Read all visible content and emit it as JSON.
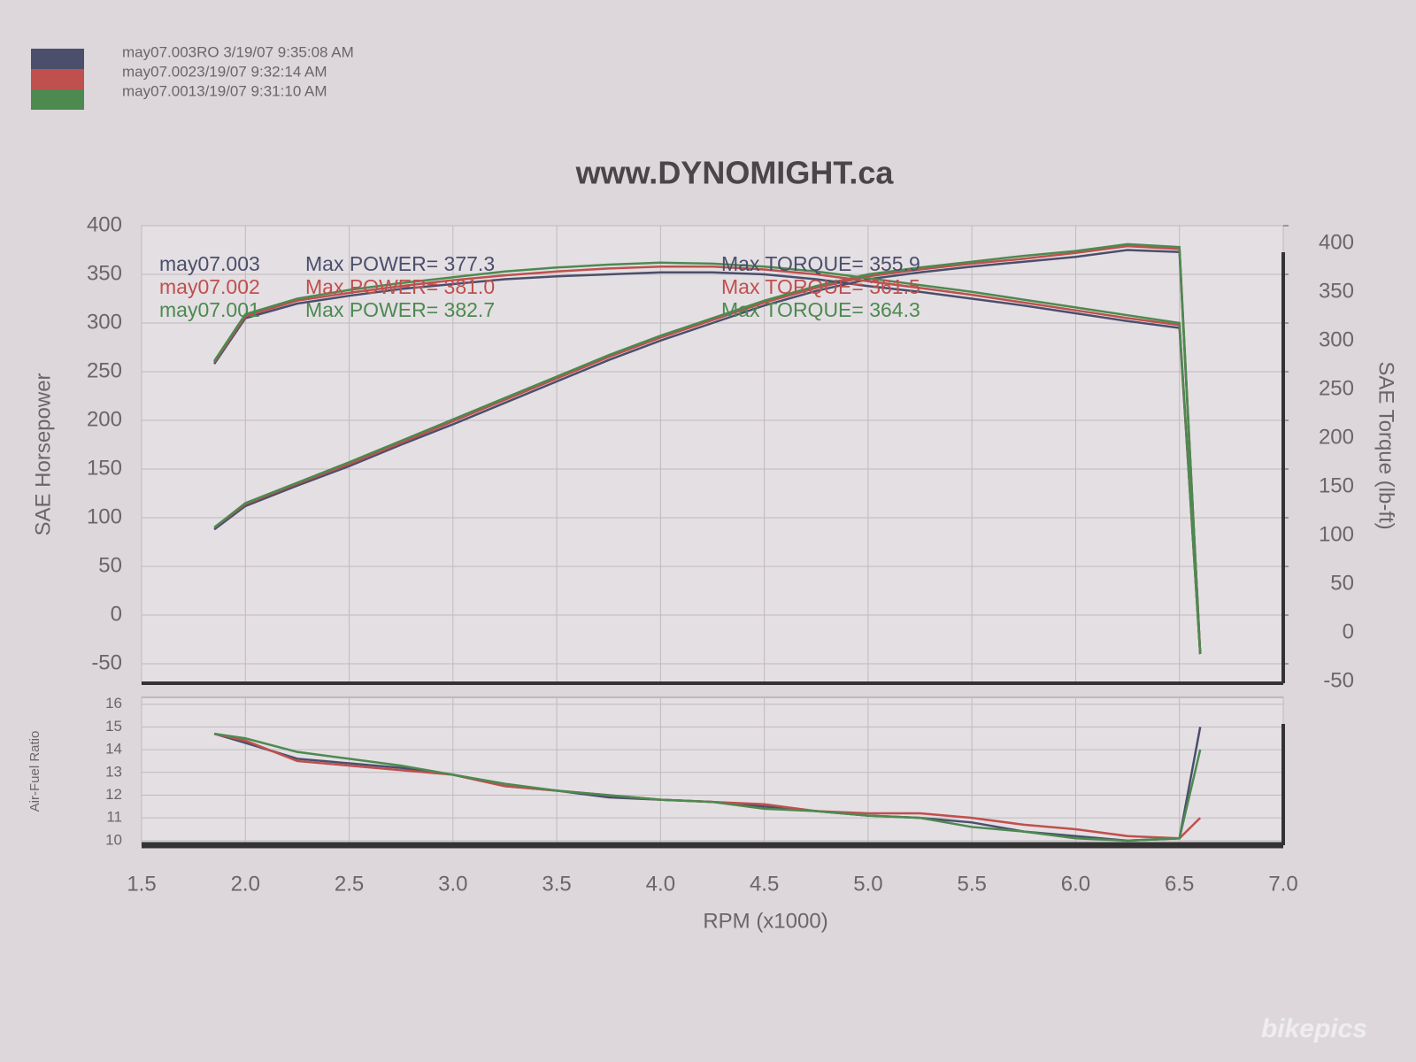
{
  "watermark": "bikepics",
  "chart_data": [
    {
      "type": "line",
      "title": "www.DYNOMIGHT.ca",
      "ylabel": "SAE Horsepower",
      "y2label": "SAE Torque (lb-ft)",
      "x": [
        1.85,
        2.0,
        2.25,
        2.5,
        2.75,
        3.0,
        3.25,
        3.5,
        3.75,
        4.0,
        4.25,
        4.5,
        4.75,
        5.0,
        5.25,
        5.5,
        5.75,
        6.0,
        6.25,
        6.5,
        6.6
      ],
      "xlim": [
        1.5,
        7.0
      ],
      "ylim": [
        -70,
        400
      ],
      "yticks": [
        -50,
        0,
        50,
        100,
        150,
        200,
        250,
        300,
        350,
        400
      ],
      "y2lim": [
        -70,
        400
      ],
      "y2ticks": [
        -50,
        0,
        50,
        100,
        150,
        200,
        250,
        300,
        350,
        400
      ],
      "grid": true,
      "series": [
        {
          "name": "may07.003RO  3/19/07 9:35:08 AM",
          "color": "#4b4f6c",
          "values": [
            88,
            112,
            133,
            153,
            175,
            196,
            218,
            240,
            262,
            282,
            300,
            318,
            333,
            345,
            352,
            358,
            363,
            368,
            375,
            373,
            -40
          ]
        },
        {
          "name": "may07.0023/19/07 9:32:14 AM",
          "color": "#c0504d",
          "values": [
            90,
            114,
            135,
            155,
            177,
            199,
            221,
            243,
            265,
            285,
            303,
            321,
            336,
            348,
            355,
            361,
            366,
            372,
            379,
            376,
            -40
          ]
        },
        {
          "name": "may07.0013/19/07 9:31:10 AM",
          "color": "#4c8a50",
          "values": [
            90,
            115,
            136,
            157,
            179,
            201,
            223,
            245,
            267,
            287,
            305,
            323,
            338,
            350,
            357,
            363,
            369,
            374,
            381,
            378,
            -40
          ]
        },
        {
          "color": "#4b4f6c",
          "axis": "y2",
          "values": [
            258,
            305,
            320,
            328,
            335,
            340,
            345,
            348,
            350,
            352,
            352,
            350,
            345,
            338,
            332,
            325,
            318,
            310,
            302,
            295,
            -40
          ]
        },
        {
          "color": "#c0504d",
          "axis": "y2",
          "values": [
            260,
            307,
            323,
            331,
            338,
            344,
            349,
            353,
            356,
            358,
            358,
            355,
            350,
            343,
            336,
            329,
            321,
            313,
            305,
            298,
            -40
          ]
        },
        {
          "color": "#4c8a50",
          "axis": "y2",
          "values": [
            261,
            309,
            325,
            334,
            341,
            347,
            353,
            357,
            360,
            362,
            361,
            358,
            353,
            346,
            339,
            332,
            324,
            316,
            308,
            300,
            -40
          ]
        }
      ],
      "annotations": [
        [
          "may07.003",
          "Max POWER= 377.3",
          "Max TORQUE= 355.9"
        ],
        [
          "may07.002",
          "Max POWER= 381.0",
          "Max TORQUE= 361.5"
        ],
        [
          "may07.001",
          "Max POWER= 382.7",
          "Max TORQUE= 364.3"
        ]
      ]
    },
    {
      "type": "line",
      "ylabel": "Air-Fuel Ratio",
      "xlabel": "RPM (x1000)",
      "x": [
        1.85,
        2.0,
        2.25,
        2.5,
        2.75,
        3.0,
        3.25,
        3.5,
        3.75,
        4.0,
        4.25,
        4.5,
        4.75,
        5.0,
        5.25,
        5.5,
        5.75,
        6.0,
        6.25,
        6.5,
        6.6
      ],
      "xlim": [
        1.5,
        7.0
      ],
      "xticks": [
        1.5,
        {
          "value": 2,
          "label": "2.0"
        },
        2.5,
        {
          "value": 3,
          "label": "3.0"
        },
        3.5,
        {
          "value": 4,
          "label": "4.0"
        },
        4.5,
        {
          "value": 5,
          "label": "5.0"
        },
        5.5,
        {
          "value": 6,
          "label": "6.0"
        },
        6.5,
        {
          "value": 7,
          "label": "7.0"
        }
      ],
      "ylim": [
        9.8,
        16.3
      ],
      "yticks": [
        10,
        11,
        12,
        13,
        14,
        15,
        16
      ],
      "grid": true,
      "series": [
        {
          "color": "#4b4f6c",
          "values": [
            14.7,
            14.3,
            13.6,
            13.4,
            13.2,
            12.9,
            12.4,
            12.2,
            11.9,
            11.8,
            11.7,
            11.5,
            11.3,
            11.1,
            11.0,
            10.8,
            10.4,
            10.2,
            10.0,
            10.1,
            15.0
          ]
        },
        {
          "color": "#c0504d",
          "values": [
            14.7,
            14.4,
            13.5,
            13.3,
            13.1,
            12.9,
            12.4,
            12.2,
            12.0,
            11.8,
            11.7,
            11.6,
            11.3,
            11.2,
            11.2,
            11.0,
            10.7,
            10.5,
            10.2,
            10.1,
            11.0
          ]
        },
        {
          "color": "#4c8a50",
          "values": [
            14.7,
            14.5,
            13.9,
            13.6,
            13.3,
            12.9,
            12.5,
            12.2,
            12.0,
            11.8,
            11.7,
            11.4,
            11.3,
            11.1,
            11.0,
            10.6,
            10.4,
            10.1,
            10.0,
            10.1,
            14.0
          ]
        }
      ]
    }
  ]
}
